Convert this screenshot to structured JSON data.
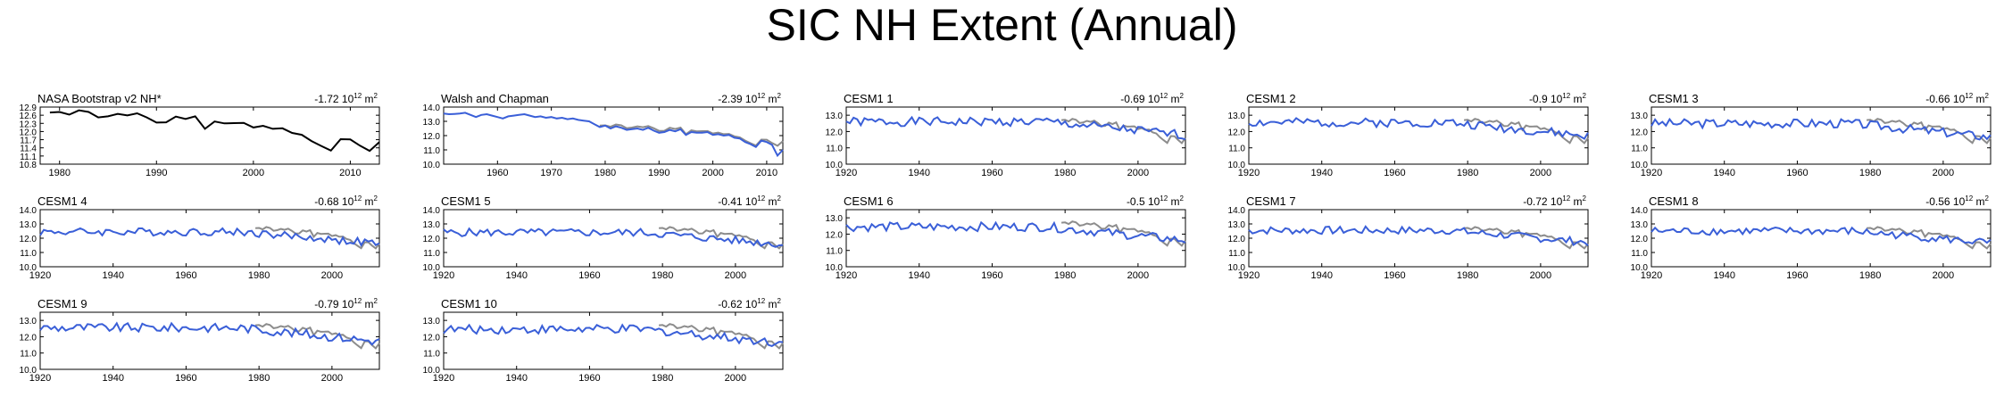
{
  "page_title": "SIC NH Extent (Annual)",
  "colors": {
    "obs": "#000000",
    "model": "#3a5fd8",
    "overlay": "#8c8c8c"
  },
  "chart_data": [
    {
      "type": "line",
      "title": "NASA Bootstrap v2 NH*",
      "trend_value": "-1.72",
      "trend_unit": "10",
      "trend_exp": "12",
      "trend_tail": " m",
      "trend_tail_exp": "2",
      "xlim": [
        1978,
        2013
      ],
      "ylim": [
        10.8,
        12.9
      ],
      "xticks": [
        1980,
        1990,
        2000,
        2010
      ],
      "yticks": [
        "10.8",
        "11.1",
        "11.4",
        "11.7",
        "12.0",
        "12.3",
        "12.6",
        "12.9"
      ],
      "series": [
        {
          "color_key": "obs",
          "x": [
            1979,
            1980,
            1981,
            1982,
            1983,
            1984,
            1985,
            1986,
            1987,
            1988,
            1989,
            1990,
            1991,
            1992,
            1993,
            1994,
            1995,
            1996,
            1997,
            1998,
            1999,
            2000,
            2001,
            2002,
            2003,
            2004,
            2005,
            2006,
            2007,
            2008,
            2009,
            2010,
            2011,
            2012,
            2013
          ],
          "y": [
            12.7,
            12.72,
            12.62,
            12.78,
            12.72,
            12.52,
            12.56,
            12.65,
            12.59,
            12.67,
            12.52,
            12.33,
            12.34,
            12.55,
            12.46,
            12.56,
            12.1,
            12.37,
            12.3,
            12.31,
            12.32,
            12.15,
            12.21,
            12.1,
            12.12,
            11.95,
            11.88,
            11.65,
            11.47,
            11.3,
            11.72,
            11.71,
            11.48,
            11.29,
            11.61
          ]
        }
      ]
    },
    {
      "type": "line",
      "title": "Walsh and Chapman",
      "trend_value": "-2.39",
      "trend_unit": "10",
      "trend_exp": "12",
      "trend_tail": " m",
      "trend_tail_exp": "2",
      "xlim": [
        1950,
        2013
      ],
      "ylim": [
        10.0,
        14.0
      ],
      "xticks": [
        1960,
        1970,
        1980,
        1990,
        2000,
        2010
      ],
      "yticks": [
        "10.0",
        "11.0",
        "12.0",
        "13.0",
        "14.0"
      ],
      "series": [
        {
          "color_key": "overlay",
          "x": [
            1979,
            1980,
            1981,
            1982,
            1983,
            1984,
            1985,
            1986,
            1987,
            1988,
            1989,
            1990,
            1991,
            1992,
            1993,
            1994,
            1995,
            1996,
            1997,
            1998,
            1999,
            2000,
            2001,
            2002,
            2003,
            2004,
            2005,
            2006,
            2007,
            2008,
            2009,
            2010,
            2011,
            2012,
            2013
          ],
          "y": [
            12.7,
            12.72,
            12.62,
            12.78,
            12.72,
            12.52,
            12.56,
            12.65,
            12.59,
            12.67,
            12.52,
            12.33,
            12.34,
            12.55,
            12.46,
            12.56,
            12.1,
            12.37,
            12.3,
            12.31,
            12.32,
            12.15,
            12.21,
            12.1,
            12.12,
            11.95,
            11.88,
            11.65,
            11.47,
            11.3,
            11.72,
            11.71,
            11.48,
            11.29,
            11.61
          ]
        },
        {
          "color_key": "model",
          "x": [
            1950,
            1951,
            1952,
            1953,
            1954,
            1955,
            1956,
            1957,
            1958,
            1959,
            1960,
            1961,
            1962,
            1963,
            1964,
            1965,
            1966,
            1967,
            1968,
            1969,
            1970,
            1971,
            1972,
            1973,
            1974,
            1975,
            1976,
            1977,
            1978,
            1979,
            1980,
            1981,
            1982,
            1983,
            1984,
            1985,
            1986,
            1987,
            1988,
            1989,
            1990,
            1991,
            1992,
            1993,
            1994,
            1995,
            1996,
            1997,
            1998,
            1999,
            2000,
            2001,
            2002,
            2003,
            2004,
            2005,
            2006,
            2007,
            2008,
            2009,
            2010,
            2011,
            2012,
            2013
          ],
          "y": [
            13.55,
            13.5,
            13.52,
            13.55,
            13.6,
            13.45,
            13.3,
            13.45,
            13.5,
            13.4,
            13.3,
            13.2,
            13.35,
            13.4,
            13.45,
            13.5,
            13.4,
            13.3,
            13.35,
            13.25,
            13.3,
            13.2,
            13.25,
            13.15,
            13.2,
            13.1,
            13.05,
            13.0,
            12.8,
            12.6,
            12.7,
            12.5,
            12.65,
            12.55,
            12.4,
            12.45,
            12.5,
            12.4,
            12.55,
            12.35,
            12.2,
            12.25,
            12.4,
            12.3,
            12.45,
            12.05,
            12.25,
            12.2,
            12.2,
            12.25,
            12.05,
            12.1,
            12.0,
            12.05,
            11.85,
            11.8,
            11.55,
            11.4,
            11.2,
            11.65,
            11.55,
            11.35,
            10.6,
            11.0
          ]
        }
      ]
    },
    {
      "type": "line",
      "title": "CESM1 1",
      "trend_value": "-0.69",
      "trend_unit": "10",
      "trend_exp": "12",
      "trend_tail": " m",
      "trend_tail_exp": "2",
      "xlim": [
        1920,
        2013
      ],
      "ylim": [
        10.0,
        13.5
      ],
      "xticks": [
        1920,
        1940,
        1960,
        1980,
        2000
      ],
      "yticks": [
        "10.0",
        "11.0",
        "12.0",
        "13.0"
      ],
      "model_seed": 1,
      "model_base": 12.6
    },
    {
      "type": "line",
      "title": "CESM1 2",
      "trend_value": "-0.9",
      "trend_unit": "10",
      "trend_exp": "12",
      "trend_tail": " m",
      "trend_tail_exp": "2",
      "xlim": [
        1920,
        2013
      ],
      "ylim": [
        10.0,
        13.5
      ],
      "xticks": [
        1920,
        1940,
        1960,
        1980,
        2000
      ],
      "yticks": [
        "10.0",
        "11.0",
        "12.0",
        "13.0"
      ],
      "model_seed": 2,
      "model_base": 12.55
    },
    {
      "type": "line",
      "title": "CESM1 3",
      "trend_value": "-0.66",
      "trend_unit": "10",
      "trend_exp": "12",
      "trend_tail": " m",
      "trend_tail_exp": "2",
      "xlim": [
        1920,
        2013
      ],
      "ylim": [
        10.0,
        13.5
      ],
      "xticks": [
        1920,
        1940,
        1960,
        1980,
        2000
      ],
      "yticks": [
        "10.0",
        "11.0",
        "12.0",
        "13.0"
      ],
      "model_seed": 3,
      "model_base": 12.5
    },
    {
      "type": "line",
      "title": "CESM1 4",
      "trend_value": "-0.68",
      "trend_unit": "10",
      "trend_exp": "12",
      "trend_tail": " m",
      "trend_tail_exp": "2",
      "xlim": [
        1920,
        2013
      ],
      "ylim": [
        10.0,
        14.0
      ],
      "xticks": [
        1920,
        1940,
        1960,
        1980,
        2000
      ],
      "yticks": [
        "10.0",
        "11.0",
        "12.0",
        "13.0",
        "14.0"
      ],
      "model_seed": 4,
      "model_base": 12.45
    },
    {
      "type": "line",
      "title": "CESM1 5",
      "trend_value": "-0.41",
      "trend_unit": "10",
      "trend_exp": "12",
      "trend_tail": " m",
      "trend_tail_exp": "2",
      "xlim": [
        1920,
        2013
      ],
      "ylim": [
        10.0,
        14.0
      ],
      "xticks": [
        1920,
        1940,
        1960,
        1980,
        2000
      ],
      "yticks": [
        "10.0",
        "11.0",
        "12.0",
        "13.0",
        "14.0"
      ],
      "model_seed": 5,
      "model_base": 12.4
    },
    {
      "type": "line",
      "title": "CESM1 6",
      "trend_value": "-0.5",
      "trend_unit": "10",
      "trend_exp": "12",
      "trend_tail": " m",
      "trend_tail_exp": "2",
      "xlim": [
        1920,
        2013
      ],
      "ylim": [
        10.0,
        13.5
      ],
      "xticks": [
        1920,
        1940,
        1960,
        1980,
        2000
      ],
      "yticks": [
        "10.0",
        "11.0",
        "12.0",
        "13.0"
      ],
      "model_seed": 6,
      "model_base": 12.45
    },
    {
      "type": "line",
      "title": "CESM1 7",
      "trend_value": "-0.72",
      "trend_unit": "10",
      "trend_exp": "12",
      "trend_tail": " m",
      "trend_tail_exp": "2",
      "xlim": [
        1920,
        2013
      ],
      "ylim": [
        10.0,
        14.0
      ],
      "xticks": [
        1920,
        1940,
        1960,
        1980,
        2000
      ],
      "yticks": [
        "10.0",
        "11.0",
        "12.0",
        "13.0",
        "14.0"
      ],
      "model_seed": 7,
      "model_base": 12.55
    },
    {
      "type": "line",
      "title": "CESM1 8",
      "trend_value": "-0.56",
      "trend_unit": "10",
      "trend_exp": "12",
      "trend_tail": " m",
      "trend_tail_exp": "2",
      "xlim": [
        1920,
        2013
      ],
      "ylim": [
        10.0,
        14.0
      ],
      "xticks": [
        1920,
        1940,
        1960,
        1980,
        2000
      ],
      "yticks": [
        "10.0",
        "11.0",
        "12.0",
        "13.0",
        "14.0"
      ],
      "model_seed": 8,
      "model_base": 12.5
    },
    {
      "type": "line",
      "title": "CESM1 9",
      "trend_value": "-0.79",
      "trend_unit": "10",
      "trend_exp": "12",
      "trend_tail": " m",
      "trend_tail_exp": "2",
      "xlim": [
        1920,
        2013
      ],
      "ylim": [
        10.0,
        13.5
      ],
      "xticks": [
        1920,
        1940,
        1960,
        1980,
        2000
      ],
      "yticks": [
        "10.0",
        "11.0",
        "12.0",
        "13.0"
      ],
      "model_seed": 9,
      "model_base": 12.55
    },
    {
      "type": "line",
      "title": "CESM1 10",
      "trend_value": "-0.62",
      "trend_unit": "10",
      "trend_exp": "12",
      "trend_tail": " m",
      "trend_tail_exp": "2",
      "xlim": [
        1920,
        2013
      ],
      "ylim": [
        10.0,
        13.5
      ],
      "xticks": [
        1920,
        1940,
        1960,
        1980,
        2000
      ],
      "yticks": [
        "10.0",
        "11.0",
        "12.0",
        "13.0"
      ],
      "model_seed": 10,
      "model_base": 12.45
    }
  ]
}
